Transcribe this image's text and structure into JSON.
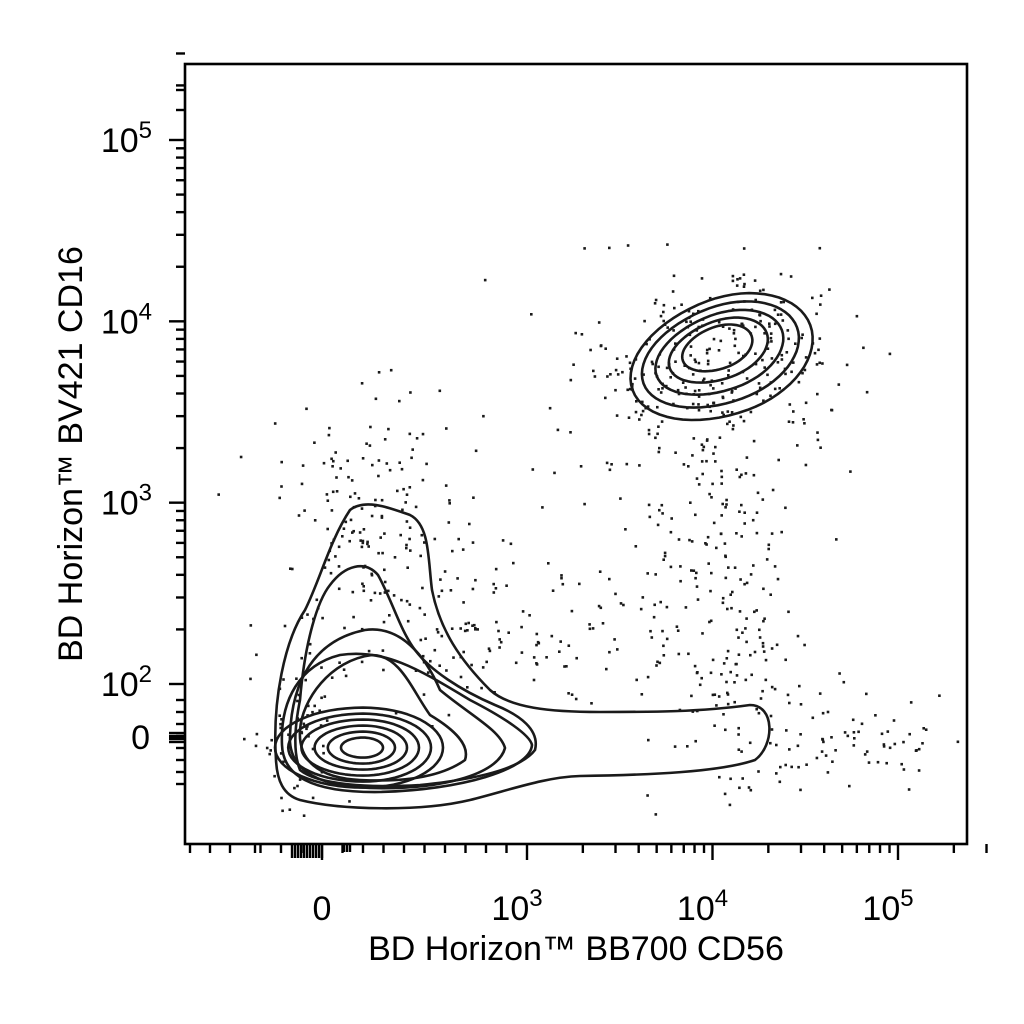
{
  "chart_data": {
    "type": "scatter",
    "subtype": "flow-cytometry-contour-plot",
    "xlabel": "BD Horizon™ BB700 CD56",
    "ylabel": "BD Horizon™ BV421 CD16",
    "x_scale": "biexponential",
    "y_scale": "biexponential",
    "x_ticks": [
      {
        "value": 0,
        "base": "0",
        "exp": ""
      },
      {
        "value": 1000,
        "base": "10",
        "exp": "3"
      },
      {
        "value": 10000,
        "base": "10",
        "exp": "4"
      },
      {
        "value": 100000,
        "base": "10",
        "exp": "5"
      }
    ],
    "y_ticks": [
      {
        "value": 0,
        "base": "0",
        "exp": ""
      },
      {
        "value": 100,
        "base": "10",
        "exp": "2"
      },
      {
        "value": 1000,
        "base": "10",
        "exp": "3"
      },
      {
        "value": 10000,
        "base": "10",
        "exp": "4"
      },
      {
        "value": 100000,
        "base": "10",
        "exp": "5"
      }
    ],
    "populations": [
      {
        "center_x": 200,
        "center_y": -20
      },
      {
        "center_x": 13000,
        "center_y": 7000
      }
    ],
    "contour_color": "#1a1a1a",
    "dot_color": "#1a1a1a",
    "grid": false
  }
}
